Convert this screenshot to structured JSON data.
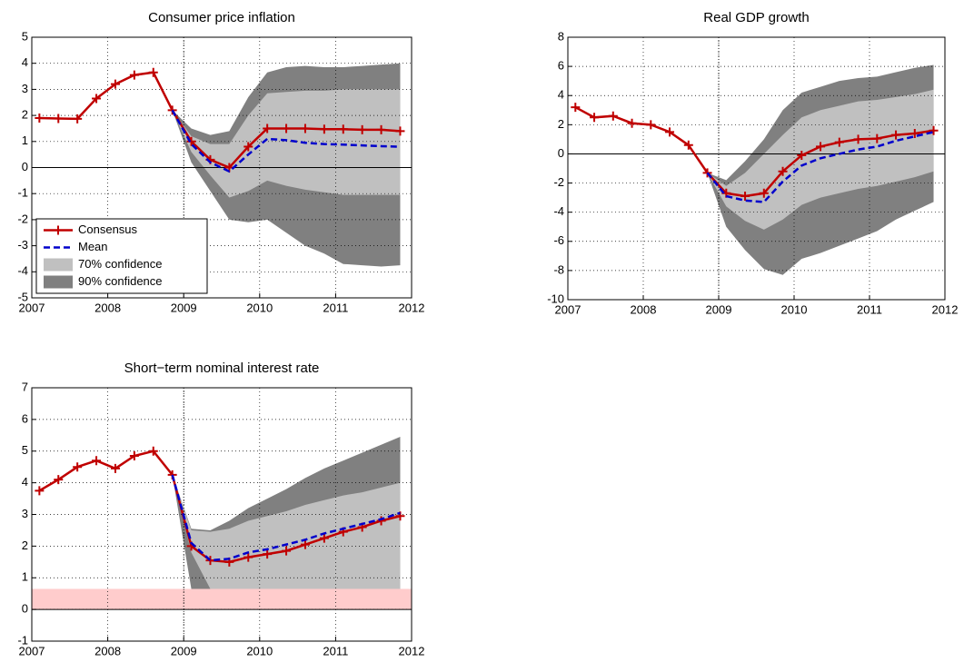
{
  "chart_data": [
    {
      "type": "line",
      "title": "Consumer price inflation",
      "x": [
        2007.1,
        2007.35,
        2007.6,
        2007.85,
        2008.1,
        2008.35,
        2008.6,
        2008.85,
        2009.1,
        2009.35,
        2009.6,
        2009.85,
        2010.1,
        2010.35,
        2010.6,
        2010.85,
        2011.1,
        2011.35,
        2011.6,
        2011.85
      ],
      "xlim": [
        2007,
        2012
      ],
      "xticks": [
        2007,
        2008,
        2009,
        2010,
        2011,
        2012
      ],
      "ylim": [
        -5,
        5
      ],
      "yticks": [
        -5,
        -4,
        -3,
        -2,
        -1,
        0,
        1,
        2,
        3,
        4,
        5
      ],
      "grid": true,
      "hline": 0,
      "vline": 2009,
      "legend": "lower left",
      "bands": [
        {
          "name": "90% confidence",
          "color": "#808080",
          "upper": [
            null,
            null,
            null,
            null,
            null,
            null,
            null,
            2.2,
            1.5,
            1.25,
            1.4,
            2.7,
            3.65,
            3.85,
            3.9,
            3.85,
            3.85,
            3.9,
            3.95,
            4.0
          ],
          "lower": [
            null,
            null,
            null,
            null,
            null,
            null,
            null,
            2.2,
            0.2,
            -0.9,
            -2.0,
            -2.1,
            -2.0,
            -2.5,
            -3.0,
            -3.3,
            -3.7,
            -3.75,
            -3.8,
            -3.75
          ]
        },
        {
          "name": "70% confidence",
          "color": "#c0c0c0",
          "upper": [
            null,
            null,
            null,
            null,
            null,
            null,
            null,
            2.2,
            1.2,
            0.9,
            0.9,
            2.0,
            2.85,
            2.9,
            2.95,
            2.95,
            3.0,
            3.0,
            3.0,
            3.0
          ],
          "lower": [
            null,
            null,
            null,
            null,
            null,
            null,
            null,
            2.2,
            0.6,
            -0.3,
            -1.15,
            -0.9,
            -0.5,
            -0.7,
            -0.85,
            -0.95,
            -1.05,
            -1.05,
            -1.05,
            -1.05
          ]
        }
      ],
      "series": [
        {
          "name": "Consensus",
          "color": "#c00000",
          "marker": "+",
          "values": [
            1.9,
            1.88,
            1.87,
            2.65,
            3.2,
            3.55,
            3.65,
            2.2,
            1.0,
            0.3,
            0.0,
            0.8,
            1.5,
            1.5,
            1.5,
            1.47,
            1.47,
            1.45,
            1.45,
            1.4
          ]
        },
        {
          "name": "Mean",
          "color": "#0000cc",
          "dash": true,
          "values": [
            null,
            null,
            null,
            null,
            null,
            null,
            null,
            2.2,
            0.9,
            0.2,
            -0.15,
            0.5,
            1.1,
            1.05,
            0.95,
            0.9,
            0.88,
            0.85,
            0.82,
            0.8
          ]
        }
      ]
    },
    {
      "type": "line",
      "title": "Real GDP growth",
      "x": [
        2007.1,
        2007.35,
        2007.6,
        2007.85,
        2008.1,
        2008.35,
        2008.6,
        2008.85,
        2009.1,
        2009.35,
        2009.6,
        2009.85,
        2010.1,
        2010.35,
        2010.6,
        2010.85,
        2011.1,
        2011.35,
        2011.6,
        2011.85
      ],
      "xlim": [
        2007,
        2012
      ],
      "xticks": [
        2007,
        2008,
        2009,
        2010,
        2011,
        2012
      ],
      "ylim": [
        -10,
        8
      ],
      "yticks": [
        -10,
        -8,
        -6,
        -4,
        -2,
        0,
        2,
        4,
        6,
        8
      ],
      "grid": true,
      "hline": 0,
      "vline": 2009,
      "bands": [
        {
          "color": "#808080",
          "upper": [
            null,
            null,
            null,
            null,
            null,
            null,
            null,
            -1.3,
            -1.8,
            -0.5,
            1.0,
            3.0,
            4.2,
            4.6,
            5.0,
            5.2,
            5.3,
            5.6,
            5.9,
            6.1
          ],
          "lower": [
            null,
            null,
            null,
            null,
            null,
            null,
            null,
            -1.3,
            -5.0,
            -6.6,
            -7.9,
            -8.3,
            -7.2,
            -6.8,
            -6.3,
            -5.8,
            -5.3,
            -4.5,
            -3.9,
            -3.3
          ]
        },
        {
          "color": "#c0c0c0",
          "upper": [
            null,
            null,
            null,
            null,
            null,
            null,
            null,
            -1.3,
            -2.2,
            -1.3,
            0.0,
            1.3,
            2.5,
            3.0,
            3.3,
            3.6,
            3.7,
            3.9,
            4.1,
            4.4
          ],
          "lower": [
            null,
            null,
            null,
            null,
            null,
            null,
            null,
            -1.3,
            -3.6,
            -4.6,
            -5.2,
            -4.5,
            -3.5,
            -3.0,
            -2.7,
            -2.4,
            -2.2,
            -1.9,
            -1.6,
            -1.2
          ]
        }
      ],
      "series": [
        {
          "color": "#c00000",
          "marker": "+",
          "values": [
            3.2,
            2.5,
            2.6,
            2.1,
            2.0,
            1.5,
            0.6,
            -1.3,
            -2.7,
            -2.9,
            -2.7,
            -1.2,
            -0.1,
            0.5,
            0.8,
            1.0,
            1.05,
            1.3,
            1.4,
            1.6
          ]
        },
        {
          "color": "#0000cc",
          "dash": true,
          "values": [
            null,
            null,
            null,
            null,
            null,
            null,
            null,
            -1.3,
            -2.9,
            -3.2,
            -3.3,
            -1.9,
            -0.8,
            -0.3,
            0.0,
            0.3,
            0.5,
            0.9,
            1.2,
            1.5
          ]
        }
      ]
    },
    {
      "type": "line",
      "title": "Short−term nominal interest rate",
      "x": [
        2007.1,
        2007.35,
        2007.6,
        2007.85,
        2008.1,
        2008.35,
        2008.6,
        2008.85,
        2009.1,
        2009.35,
        2009.6,
        2009.85,
        2010.1,
        2010.35,
        2010.6,
        2010.85,
        2011.1,
        2011.35,
        2011.6,
        2011.85
      ],
      "xlim": [
        2007,
        2012
      ],
      "xticks": [
        2007,
        2008,
        2009,
        2010,
        2011,
        2012
      ],
      "ylim": [
        -1,
        7
      ],
      "yticks": [
        -1,
        0,
        1,
        2,
        3,
        4,
        5,
        6,
        7
      ],
      "grid": true,
      "hline": 0,
      "vline": 2009,
      "hspan": {
        "from": 0,
        "to": 0.65,
        "color": "#ffcccc"
      },
      "bands": [
        {
          "color": "#808080",
          "upper": [
            null,
            null,
            null,
            null,
            null,
            null,
            null,
            4.25,
            2.55,
            2.5,
            2.8,
            3.2,
            3.5,
            3.8,
            4.15,
            4.45,
            4.7,
            4.95,
            5.2,
            5.45
          ],
          "lower": [
            null,
            null,
            null,
            null,
            null,
            null,
            null,
            4.25,
            0.65,
            0.65,
            0.65,
            0.65,
            0.65,
            0.65,
            0.65,
            0.65,
            0.65,
            0.65,
            0.65,
            0.65
          ]
        },
        {
          "color": "#c0c0c0",
          "upper": [
            null,
            null,
            null,
            null,
            null,
            null,
            null,
            4.25,
            2.5,
            2.45,
            2.55,
            2.8,
            2.95,
            3.1,
            3.3,
            3.45,
            3.6,
            3.7,
            3.85,
            4.0
          ],
          "lower": [
            null,
            null,
            null,
            null,
            null,
            null,
            null,
            4.25,
            1.8,
            0.65,
            0.65,
            0.65,
            0.65,
            0.65,
            0.65,
            0.65,
            0.65,
            0.65,
            0.65,
            0.65
          ]
        }
      ],
      "series": [
        {
          "color": "#c00000",
          "marker": "+",
          "values": [
            3.75,
            4.1,
            4.5,
            4.7,
            4.45,
            4.85,
            5.0,
            4.25,
            2.0,
            1.55,
            1.5,
            1.65,
            1.75,
            1.85,
            2.05,
            2.25,
            2.45,
            2.6,
            2.8,
            2.95
          ]
        },
        {
          "color": "#0000cc",
          "dash": true,
          "values": [
            null,
            null,
            null,
            null,
            null,
            null,
            null,
            4.25,
            2.1,
            1.55,
            1.6,
            1.8,
            1.9,
            2.05,
            2.2,
            2.4,
            2.55,
            2.7,
            2.85,
            3.05
          ]
        }
      ]
    }
  ]
}
